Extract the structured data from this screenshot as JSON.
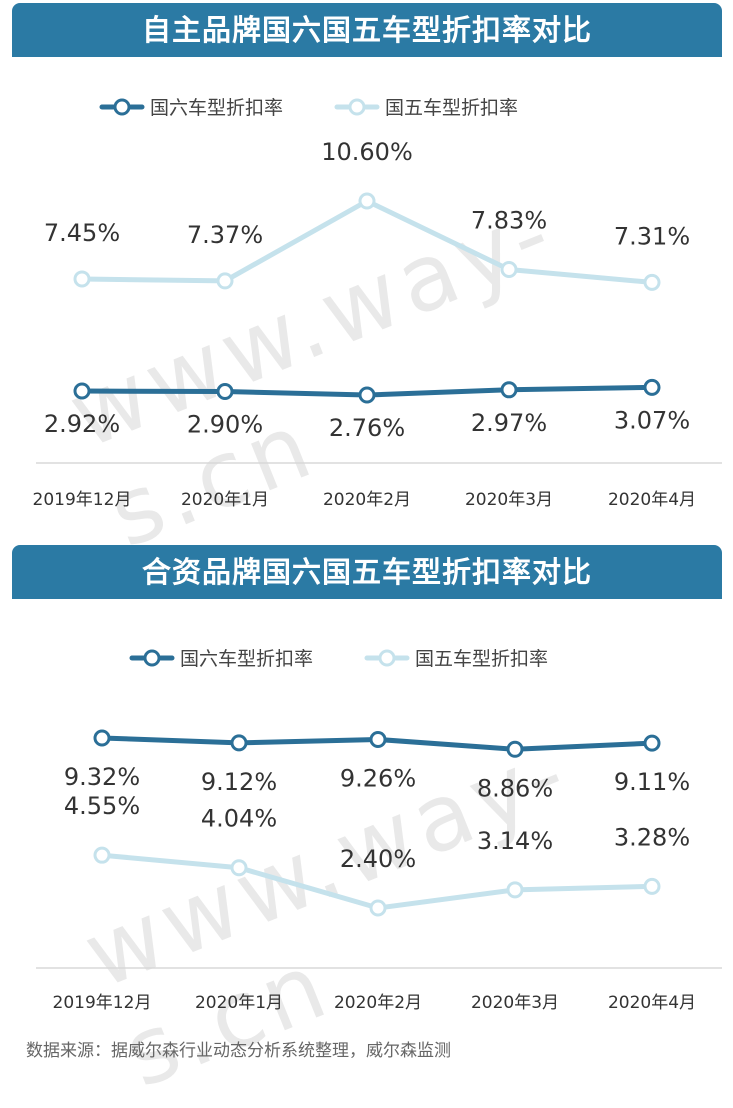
{
  "watermark": "www.way-s.cn",
  "footer": "数据来源：据威尔森行业动态分析系统整理，威尔森监测",
  "colors": {
    "header": "#2b7aa4",
    "dark_series": "#2b6f97",
    "light_series": "#c5e2ec"
  },
  "chart_data": [
    {
      "type": "line",
      "title": "自主品牌国六国五车型折扣率对比",
      "categories": [
        "2019年12月",
        "2020年1月",
        "2020年2月",
        "2020年3月",
        "2020年4月"
      ],
      "series": [
        {
          "name": "国六车型折扣率",
          "values": [
            2.92,
            2.9,
            2.76,
            2.97,
            3.07
          ],
          "labels": [
            "2.92%",
            "2.90%",
            "2.76%",
            "2.97%",
            "3.07%"
          ]
        },
        {
          "name": "国五车型折扣率",
          "values": [
            7.45,
            7.37,
            10.6,
            7.83,
            7.31
          ],
          "labels": [
            "7.45%",
            "7.37%",
            "10.60%",
            "7.83%",
            "7.31%"
          ]
        }
      ],
      "legend_position": "top-center",
      "grid": false
    },
    {
      "type": "line",
      "title": "合资品牌国六国五车型折扣率对比",
      "categories": [
        "2019年12月",
        "2020年1月",
        "2020年2月",
        "2020年3月",
        "2020年4月"
      ],
      "series": [
        {
          "name": "国六车型折扣率",
          "values": [
            9.32,
            9.12,
            9.26,
            8.86,
            9.11
          ],
          "labels": [
            "9.32%",
            "9.12%",
            "9.26%",
            "8.86%",
            "9.11%"
          ]
        },
        {
          "name": "国五车型折扣率",
          "values": [
            4.55,
            4.04,
            2.4,
            3.14,
            3.28
          ],
          "labels": [
            "4.55%",
            "4.04%",
            "2.40%",
            "3.14%",
            "3.28%"
          ]
        }
      ],
      "legend_position": "top-center",
      "grid": false
    }
  ]
}
